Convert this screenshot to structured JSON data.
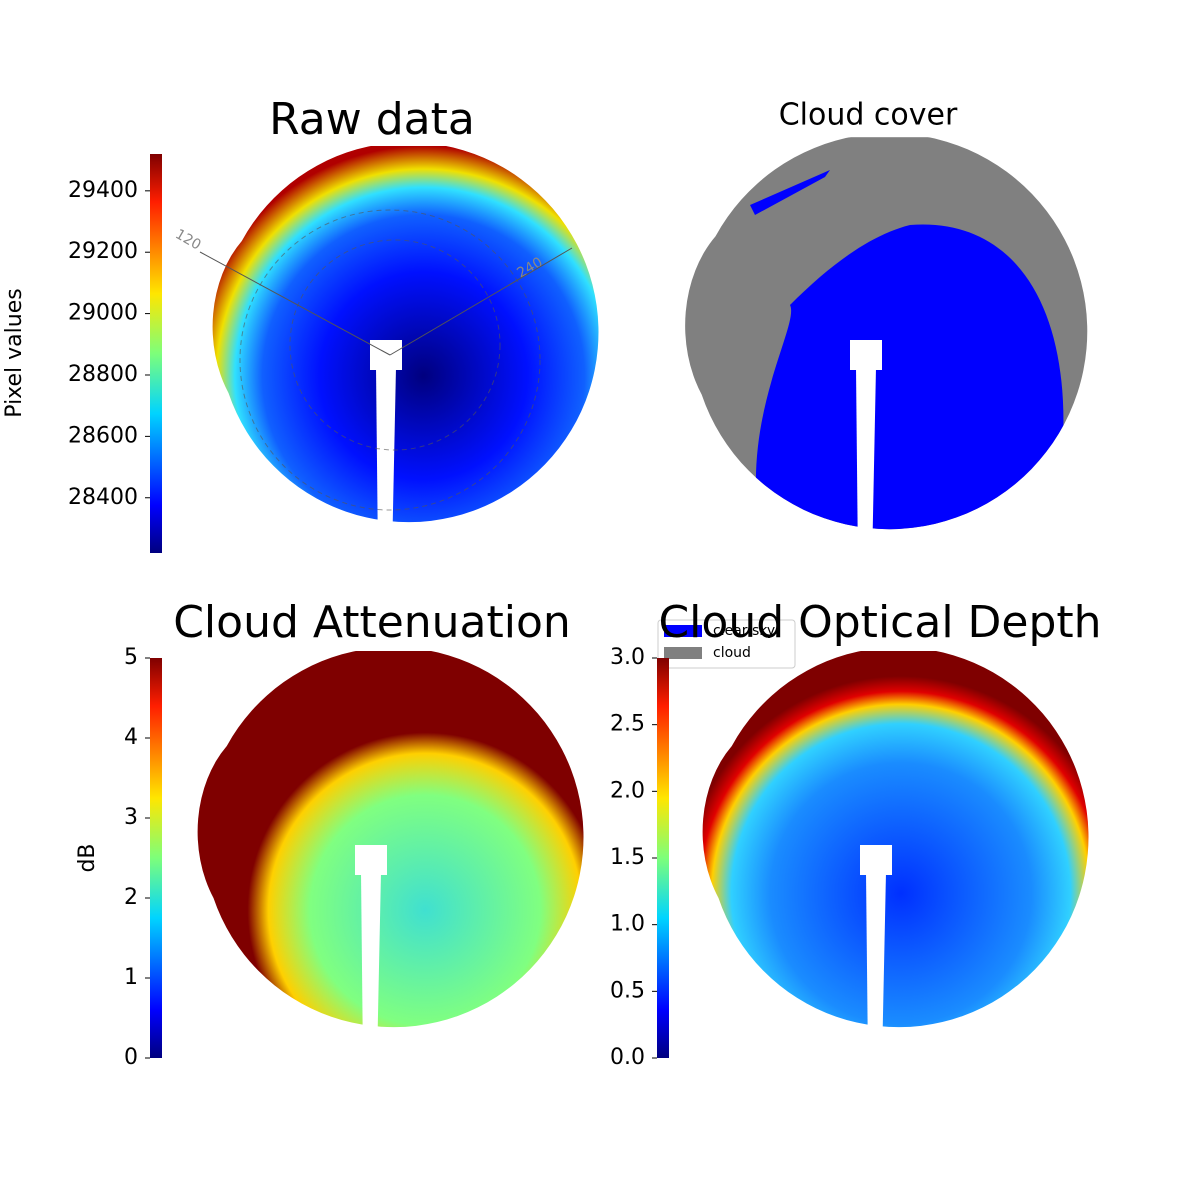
{
  "chart_data": [
    {
      "type": "image",
      "title": "Raw data",
      "colorbar_label": "Pixel values",
      "colormap": "jet",
      "clim": [
        28220,
        29520
      ],
      "cticks": [
        28400,
        28600,
        28800,
        29000,
        29200,
        29400
      ],
      "annotations": [
        "120",
        "240"
      ]
    },
    {
      "type": "mask",
      "title": "Cloud cover",
      "series": [
        {
          "name": "clear sky",
          "color": "#0000ff"
        },
        {
          "name": "cloud",
          "color": "#808080"
        }
      ]
    },
    {
      "type": "image",
      "title": "Cloud Attenuation",
      "colorbar_label": "dB",
      "colormap": "jet",
      "clim": [
        0,
        5
      ],
      "cticks": [
        0,
        1,
        2,
        3,
        4,
        5
      ]
    },
    {
      "type": "image",
      "title": "Cloud Optical Depth",
      "colormap": "jet",
      "clim": [
        0,
        3
      ],
      "cticks": [
        {
          "value": 0,
          "label": "0.0"
        },
        {
          "value": 0.5,
          "label": "0.5"
        },
        {
          "value": 1,
          "label": "1.0"
        },
        {
          "value": 1.5,
          "label": "1.5"
        },
        {
          "value": 2,
          "label": "2.0"
        },
        {
          "value": 2.5,
          "label": "2.5"
        },
        {
          "value": 3,
          "label": "3.0"
        }
      ]
    }
  ]
}
